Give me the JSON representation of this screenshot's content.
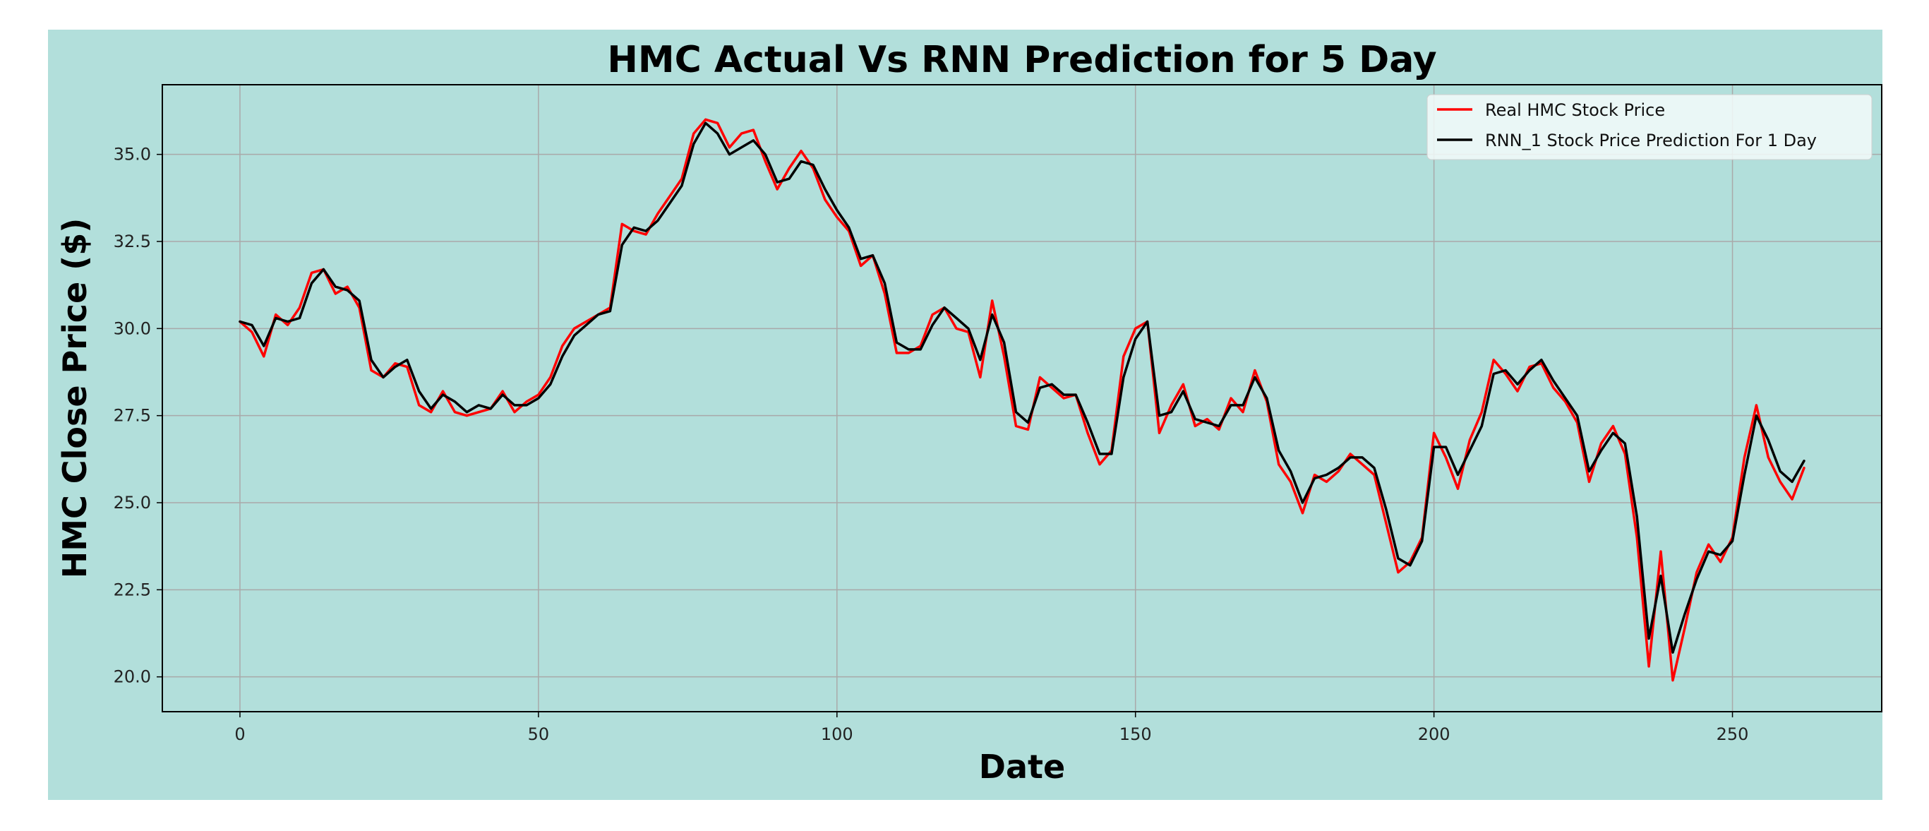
{
  "chart_data": {
    "type": "line",
    "title": "HMC Actual Vs RNN Prediction for 5 Day",
    "xlabel": "Date",
    "ylabel": "HMC Close Price ($)",
    "xlim": [
      -13,
      275
    ],
    "ylim": [
      19.0,
      37.0
    ],
    "xticks": [
      "0",
      "50",
      "100",
      "150",
      "200",
      "250"
    ],
    "yticks": [
      "20.0",
      "22.5",
      "25.0",
      "27.5",
      "30.0",
      "32.5",
      "35.0"
    ],
    "grid": true,
    "legend_position": "top-right",
    "colors": {
      "figure_bg": "#b2dfdb",
      "axes_bg": "#b2dfdb",
      "grid": "#a9a9a9"
    },
    "series": [
      {
        "name": "Real HMC Stock Price",
        "color": "#ff0000",
        "x": [
          0,
          2,
          4,
          6,
          8,
          10,
          12,
          14,
          16,
          18,
          20,
          22,
          24,
          26,
          28,
          30,
          32,
          34,
          36,
          38,
          40,
          42,
          44,
          46,
          48,
          50,
          52,
          54,
          56,
          58,
          60,
          62,
          64,
          66,
          68,
          70,
          72,
          74,
          76,
          78,
          80,
          82,
          84,
          86,
          88,
          90,
          92,
          94,
          96,
          98,
          100,
          102,
          104,
          106,
          108,
          110,
          112,
          114,
          116,
          118,
          120,
          122,
          124,
          126,
          128,
          130,
          132,
          134,
          136,
          138,
          140,
          142,
          144,
          146,
          148,
          150,
          152,
          154,
          156,
          158,
          160,
          162,
          164,
          166,
          168,
          170,
          172,
          174,
          176,
          178,
          180,
          182,
          184,
          186,
          188,
          190,
          192,
          194,
          196,
          198,
          200,
          202,
          204,
          206,
          208,
          210,
          212,
          214,
          216,
          218,
          220,
          222,
          224,
          226,
          228,
          230,
          232,
          234,
          236,
          238,
          240,
          242,
          244,
          246,
          248,
          250,
          252,
          254,
          256,
          258,
          260,
          262
        ],
        "values": [
          30.2,
          29.9,
          29.2,
          30.4,
          30.1,
          30.6,
          31.6,
          31.7,
          31.0,
          31.2,
          30.6,
          28.8,
          28.6,
          29.0,
          28.9,
          27.8,
          27.6,
          28.2,
          27.6,
          27.5,
          27.6,
          27.7,
          28.2,
          27.6,
          27.9,
          28.1,
          28.6,
          29.5,
          30.0,
          30.2,
          30.4,
          30.6,
          33.0,
          32.8,
          32.7,
          33.3,
          33.8,
          34.3,
          35.6,
          36.0,
          35.9,
          35.2,
          35.6,
          35.7,
          34.8,
          34.0,
          34.6,
          35.1,
          34.6,
          33.7,
          33.2,
          32.8,
          31.8,
          32.1,
          31.0,
          29.3,
          29.3,
          29.5,
          30.4,
          30.6,
          30.0,
          29.9,
          28.6,
          30.8,
          29.2,
          27.2,
          27.1,
          28.6,
          28.3,
          28.0,
          28.1,
          27.0,
          26.1,
          26.5,
          29.2,
          30.0,
          30.2,
          27.0,
          27.8,
          28.4,
          27.2,
          27.4,
          27.1,
          28.0,
          27.6,
          28.8,
          27.9,
          26.1,
          25.6,
          24.7,
          25.8,
          25.6,
          25.9,
          26.4,
          26.1,
          25.8,
          24.4,
          23.0,
          23.3,
          24.0,
          27.0,
          26.3,
          25.4,
          26.8,
          27.6,
          29.1,
          28.7,
          28.2,
          28.9,
          29.0,
          28.3,
          27.9,
          27.3,
          25.6,
          26.7,
          27.2,
          26.4,
          24.0,
          20.3,
          23.6,
          19.9,
          21.4,
          23.0,
          23.8,
          23.3,
          24.0,
          26.3,
          27.8,
          26.3,
          25.6,
          25.1,
          26.0
        ]
      },
      {
        "name": "RNN_1 Stock Price Prediction For 1 Day",
        "color": "#000000",
        "x": [
          0,
          2,
          4,
          6,
          8,
          10,
          12,
          14,
          16,
          18,
          20,
          22,
          24,
          26,
          28,
          30,
          32,
          34,
          36,
          38,
          40,
          42,
          44,
          46,
          48,
          50,
          52,
          54,
          56,
          58,
          60,
          62,
          64,
          66,
          68,
          70,
          72,
          74,
          76,
          78,
          80,
          82,
          84,
          86,
          88,
          90,
          92,
          94,
          96,
          98,
          100,
          102,
          104,
          106,
          108,
          110,
          112,
          114,
          116,
          118,
          120,
          122,
          124,
          126,
          128,
          130,
          132,
          134,
          136,
          138,
          140,
          142,
          144,
          146,
          148,
          150,
          152,
          154,
          156,
          158,
          160,
          162,
          164,
          166,
          168,
          170,
          172,
          174,
          176,
          178,
          180,
          182,
          184,
          186,
          188,
          190,
          192,
          194,
          196,
          198,
          200,
          202,
          204,
          206,
          208,
          210,
          212,
          214,
          216,
          218,
          220,
          222,
          224,
          226,
          228,
          230,
          232,
          234,
          236,
          238,
          240,
          242,
          244,
          246,
          248,
          250,
          252,
          254,
          256,
          258,
          260,
          262
        ],
        "values": [
          30.2,
          30.1,
          29.5,
          30.3,
          30.2,
          30.3,
          31.3,
          31.7,
          31.2,
          31.1,
          30.8,
          29.1,
          28.6,
          28.9,
          29.1,
          28.2,
          27.7,
          28.1,
          27.9,
          27.6,
          27.8,
          27.7,
          28.1,
          27.8,
          27.8,
          28.0,
          28.4,
          29.2,
          29.8,
          30.1,
          30.4,
          30.5,
          32.4,
          32.9,
          32.8,
          33.1,
          33.6,
          34.1,
          35.3,
          35.9,
          35.6,
          35.0,
          35.2,
          35.4,
          35.0,
          34.2,
          34.3,
          34.8,
          34.7,
          34.0,
          33.4,
          32.9,
          32.0,
          32.1,
          31.3,
          29.6,
          29.4,
          29.4,
          30.1,
          30.6,
          30.3,
          30.0,
          29.1,
          30.4,
          29.6,
          27.6,
          27.3,
          28.3,
          28.4,
          28.1,
          28.1,
          27.3,
          26.4,
          26.4,
          28.6,
          29.7,
          30.2,
          27.5,
          27.6,
          28.2,
          27.4,
          27.3,
          27.2,
          27.8,
          27.8,
          28.6,
          28.0,
          26.5,
          25.9,
          25.0,
          25.7,
          25.8,
          26.0,
          26.3,
          26.3,
          26.0,
          24.8,
          23.4,
          23.2,
          23.9,
          26.6,
          26.6,
          25.8,
          26.5,
          27.2,
          28.7,
          28.8,
          28.4,
          28.8,
          29.1,
          28.5,
          28.0,
          27.5,
          25.9,
          26.5,
          27.0,
          26.7,
          24.6,
          21.1,
          22.9,
          20.7,
          21.8,
          22.8,
          23.6,
          23.5,
          23.9,
          25.8,
          27.5,
          26.8,
          25.9,
          25.6,
          26.2
        ]
      }
    ]
  }
}
